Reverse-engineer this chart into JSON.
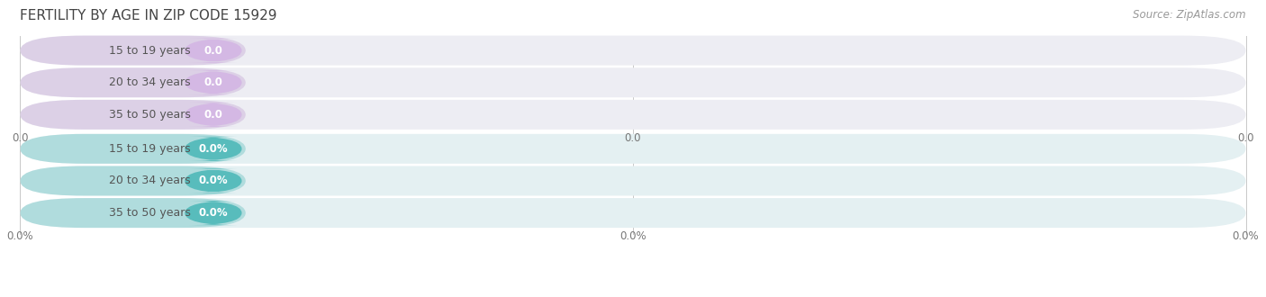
{
  "title": "FERTILITY BY AGE IN ZIP CODE 15929",
  "source": "Source: ZipAtlas.com",
  "background_color": "#ffffff",
  "top_section": {
    "categories": [
      "15 to 19 years",
      "20 to 34 years",
      "35 to 50 years"
    ],
    "values": [
      0.0,
      0.0,
      0.0
    ],
    "bar_bg_color": "#ededf3",
    "left_accent_color": "#c8aed8",
    "value_bg_color": "#d4b8e4",
    "value_text_color": "#ffffff",
    "label_color": "#555555",
    "x_tick_labels": [
      "0.0",
      "0.0",
      "0.0"
    ]
  },
  "bottom_section": {
    "categories": [
      "15 to 19 years",
      "20 to 34 years",
      "35 to 50 years"
    ],
    "values": [
      0.0,
      0.0,
      0.0
    ],
    "bar_bg_color": "#e4f0f2",
    "left_accent_color": "#72c4c4",
    "value_bg_color": "#58bcbc",
    "value_text_color": "#ffffff",
    "label_color": "#555555",
    "x_tick_labels": [
      "0.0%",
      "0.0%",
      "0.0%"
    ]
  },
  "title_fontsize": 11,
  "label_fontsize": 9,
  "value_fontsize": 8.5,
  "source_fontsize": 8.5,
  "tick_fontsize": 8.5
}
